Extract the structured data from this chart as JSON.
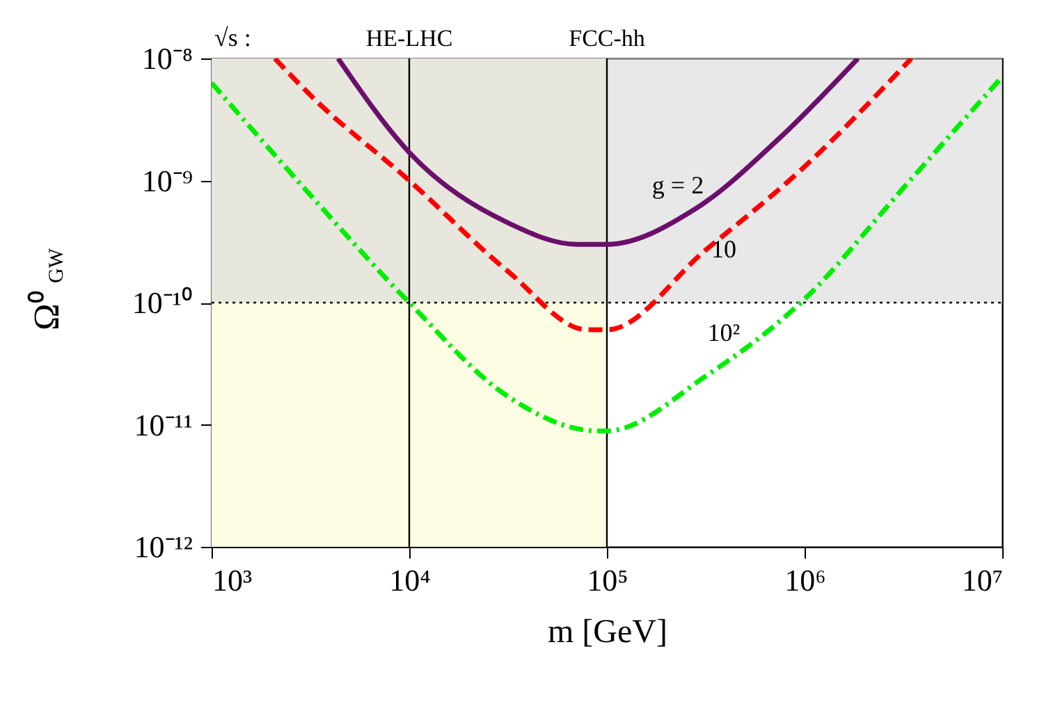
{
  "chart_data": {
    "type": "line",
    "xlabel": "m [GeV]",
    "ylabel": "Ω⁰$_{GW}$",
    "log": "xy",
    "grid": false,
    "xlim": [
      1000,
      10000000
    ],
    "ylim": [
      1e-12,
      1e-08
    ],
    "xticks": [
      {
        "value": 1000,
        "label": "10³"
      },
      {
        "value": 10000,
        "label": "10⁴"
      },
      {
        "value": 100000,
        "label": "10⁵"
      },
      {
        "value": 1000000,
        "label": "10⁶"
      },
      {
        "value": 10000000,
        "label": "10⁷"
      }
    ],
    "yticks": [
      {
        "value": 1e-12,
        "label": "10⁻¹²"
      },
      {
        "value": 1e-11,
        "label": "10⁻¹¹"
      },
      {
        "value": 1e-10,
        "label": "10⁻¹⁰"
      },
      {
        "value": 1e-09,
        "label": "10⁻⁹"
      },
      {
        "value": 1e-08,
        "label": "10⁻⁸"
      }
    ],
    "series": [
      {
        "color": "#6b0f6b",
        "line_style": "solid",
        "x": [
          4365,
          10000,
          31623,
          70795,
          100000,
          281838,
          741310,
          1862087
        ],
        "values": [
          1e-08,
          1.7e-09,
          4.5e-10,
          3e-10,
          3e-10,
          5.9e-10,
          2.2e-09,
          1e-08
        ]
      },
      {
        "color": "#ff0000",
        "line_style": "dashed",
        "x": [
          2089,
          3162,
          10000,
          31623,
          79433,
          100000,
          316228,
          1000000,
          3467369
        ],
        "values": [
          1e-08,
          5e-09,
          1e-09,
          1.8e-10,
          6e-11,
          6e-11,
          2.7e-10,
          1.3e-09,
          1e-08
        ]
      },
      {
        "color": "#00ee00",
        "line_style": "dashdot",
        "x": [
          1000,
          3162,
          10000,
          31623,
          89125,
          100000,
          316228,
          1000000,
          3162278,
          10000000
        ],
        "values": [
          6.3e-09,
          7.6e-10,
          1e-10,
          1.7e-11,
          8.9e-12,
          8.9e-12,
          2.5e-11,
          1.07e-10,
          8.7e-10,
          7.1e-09
        ]
      }
    ],
    "bands": [
      {
        "axis": "x",
        "from": 1000,
        "to": 100000,
        "color": "#fdfde3"
      },
      {
        "axis": "y",
        "from": 1e-10,
        "to": 1e-08,
        "color": "#d9d9d9"
      }
    ],
    "ref_lines": [
      {
        "axis": "x",
        "value": 10000,
        "label": "HE-LHC",
        "color": "#000000",
        "line_style": "solid"
      },
      {
        "axis": "x",
        "value": 100000,
        "label": "FCC-hh",
        "color": "#000000",
        "line_style": "solid"
      },
      {
        "axis": "y",
        "value": 1e-10,
        "color": "#000000",
        "line_style": "dotted"
      }
    ],
    "annotations": [
      "√s :",
      "g = 2",
      "10",
      "10²"
    ]
  }
}
